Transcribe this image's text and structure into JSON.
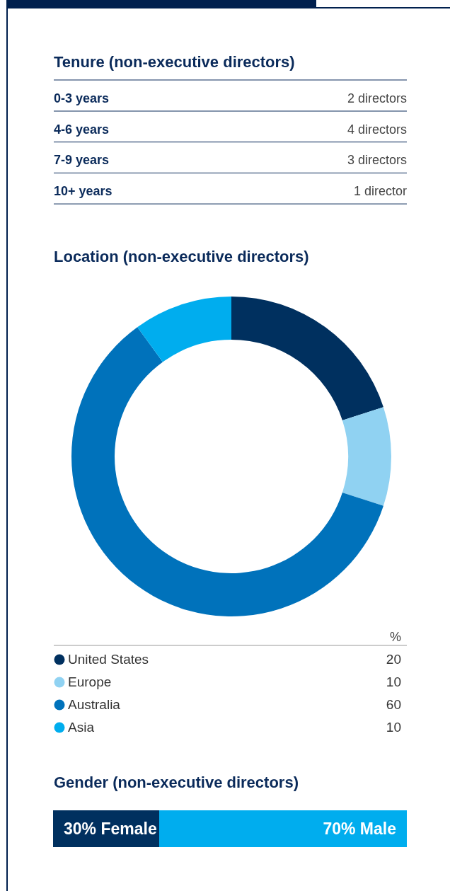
{
  "chart_data": [
    {
      "type": "other",
      "title": "Tenure (non-executive directors)",
      "categories": [
        "0-3 years",
        "4-6 years",
        "7-9 years",
        "10+ years"
      ],
      "value_labels": [
        "2 directors",
        "4 directors",
        "3 directors",
        "1 director"
      ]
    },
    {
      "type": "donut",
      "title": "Location (non-executive directors)",
      "categories": [
        "United States",
        "Europe",
        "Australia",
        "Asia"
      ],
      "values": [
        20,
        10,
        60,
        10
      ],
      "colors": [
        "#00305f",
        "#90d2f2",
        "#0072bb",
        "#00adee"
      ],
      "data_labels": true,
      "legend": "bottom",
      "annotations": [
        "%"
      ]
    },
    {
      "type": "bar",
      "title": "Gender (non-executive directors)",
      "orientation": "horizontal",
      "stacked": true,
      "categories": [
        null
      ],
      "xlim": [
        0,
        100
      ],
      "tick_labels": false,
      "series": [
        {
          "color": "#00305f",
          "values": [
            30
          ],
          "value_labels": [
            "30% Female"
          ]
        },
        {
          "color": "#00adee",
          "values": [
            70
          ],
          "value_labels": [
            "70% Male"
          ]
        }
      ]
    }
  ]
}
